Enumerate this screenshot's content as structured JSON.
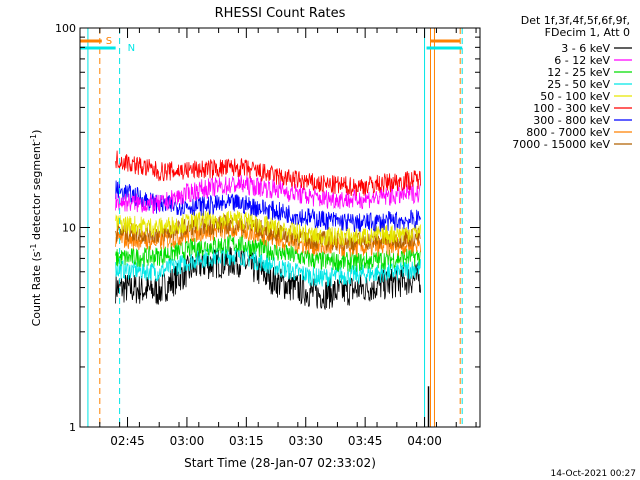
{
  "chart_data": {
    "type": "line",
    "title": "RHESSI Count Rates",
    "xlabel": "Start Time (28-Jan-07 02:33:02)",
    "ylabel_main": "Count Rate (s",
    "ylabel_sup": "-1",
    "ylabel_tail": " detector segment",
    "ylabel_sup2": "-1",
    "ylabel_end": ")",
    "yscale": "log",
    "ylim": [
      1,
      100
    ],
    "y_ticks": [
      {
        "value": 1,
        "label": "1"
      },
      {
        "value": 10,
        "label": "10"
      },
      {
        "value": 100,
        "label": "100"
      }
    ],
    "xlim_minutes": [
      0,
      101
    ],
    "x_ticks": [
      {
        "minute": 12,
        "label": "02:45"
      },
      {
        "minute": 27,
        "label": "03:00"
      },
      {
        "minute": 42,
        "label": "03:15"
      },
      {
        "minute": 57,
        "label": "03:30"
      },
      {
        "minute": 72,
        "label": "03:45"
      },
      {
        "minute": 87,
        "label": "04:00"
      }
    ],
    "grid": false,
    "legend_header": [
      "Det 1f,3f,4f,5f,6f,9f,",
      "FDecim 1, Att 0"
    ],
    "legend_position": "right",
    "data_range_minutes": [
      9,
      86
    ],
    "series": [
      {
        "name": "3 - 6 keV",
        "color": "#000000",
        "points": [
          [
            9,
            5.0
          ],
          [
            20,
            4.8
          ],
          [
            30,
            6.5
          ],
          [
            40,
            6.8
          ],
          [
            50,
            5.3
          ],
          [
            60,
            4.6
          ],
          [
            70,
            4.9
          ],
          [
            80,
            5.3
          ],
          [
            86,
            5.6
          ]
        ]
      },
      {
        "name": "6 - 12 keV",
        "color": "#ff00ff",
        "points": [
          [
            9,
            13.5
          ],
          [
            20,
            13.0
          ],
          [
            30,
            15.5
          ],
          [
            40,
            16.5
          ],
          [
            50,
            15.5
          ],
          [
            60,
            14.0
          ],
          [
            70,
            13.8
          ],
          [
            80,
            14.5
          ],
          [
            86,
            15.0
          ]
        ]
      },
      {
        "name": "12 - 25 keV",
        "color": "#00dd00",
        "points": [
          [
            9,
            7.0
          ],
          [
            20,
            7.2
          ],
          [
            30,
            8.0
          ],
          [
            40,
            8.3
          ],
          [
            50,
            7.5
          ],
          [
            60,
            6.8
          ],
          [
            70,
            6.7
          ],
          [
            80,
            7.0
          ],
          [
            86,
            7.2
          ]
        ]
      },
      {
        "name": "25 - 50 keV",
        "color": "#00e6e6",
        "points": [
          [
            9,
            6.2
          ],
          [
            20,
            6.0
          ],
          [
            30,
            7.0
          ],
          [
            40,
            7.3
          ],
          [
            50,
            6.3
          ],
          [
            60,
            5.6
          ],
          [
            70,
            5.8
          ],
          [
            80,
            6.0
          ],
          [
            86,
            6.3
          ]
        ]
      },
      {
        "name": "50 - 100 keV",
        "color": "#e6e600",
        "points": [
          [
            9,
            10.5
          ],
          [
            20,
            10.0
          ],
          [
            30,
            10.8
          ],
          [
            40,
            11.0
          ],
          [
            50,
            9.8
          ],
          [
            60,
            9.0
          ],
          [
            70,
            9.0
          ],
          [
            80,
            9.3
          ],
          [
            86,
            9.6
          ]
        ]
      },
      {
        "name": "100 - 300 keV",
        "color": "#ff0000",
        "points": [
          [
            9,
            22.0
          ],
          [
            20,
            19.0
          ],
          [
            30,
            19.5
          ],
          [
            40,
            20.0
          ],
          [
            50,
            18.0
          ],
          [
            60,
            16.5
          ],
          [
            70,
            16.0
          ],
          [
            80,
            17.0
          ],
          [
            86,
            17.5
          ]
        ]
      },
      {
        "name": "300 - 800 keV",
        "color": "#0000ff",
        "points": [
          [
            9,
            15.5
          ],
          [
            20,
            13.0
          ],
          [
            30,
            12.8
          ],
          [
            40,
            13.2
          ],
          [
            50,
            12.0
          ],
          [
            60,
            11.0
          ],
          [
            70,
            10.5
          ],
          [
            80,
            10.8
          ],
          [
            86,
            11.0
          ]
        ]
      },
      {
        "name": "800 - 7000 keV",
        "color": "#ff8000",
        "points": [
          [
            9,
            8.8
          ],
          [
            20,
            8.5
          ],
          [
            30,
            9.5
          ],
          [
            40,
            9.8
          ],
          [
            50,
            8.7
          ],
          [
            60,
            8.0
          ],
          [
            70,
            7.9
          ],
          [
            80,
            8.1
          ],
          [
            86,
            8.3
          ]
        ]
      },
      {
        "name": "7000 - 15000 keV",
        "color": "#b06000",
        "points": [
          [
            9,
            9.5
          ],
          [
            20,
            9.3
          ],
          [
            30,
            10.2
          ],
          [
            40,
            10.4
          ],
          [
            50,
            9.4
          ],
          [
            60,
            8.6
          ],
          [
            70,
            8.5
          ],
          [
            80,
            8.8
          ],
          [
            86,
            9.0
          ]
        ]
      }
    ],
    "annotations": [
      {
        "label": "S",
        "color": "#ff8000",
        "x_minute": 5,
        "line_x_minutes": [
          0,
          5
        ]
      },
      {
        "label": "N",
        "color": "#00e6e6",
        "x_minute": 10,
        "line_x_minutes": [
          0,
          9
        ]
      }
    ],
    "footer_date": "14-Oct-2021 00:27"
  }
}
